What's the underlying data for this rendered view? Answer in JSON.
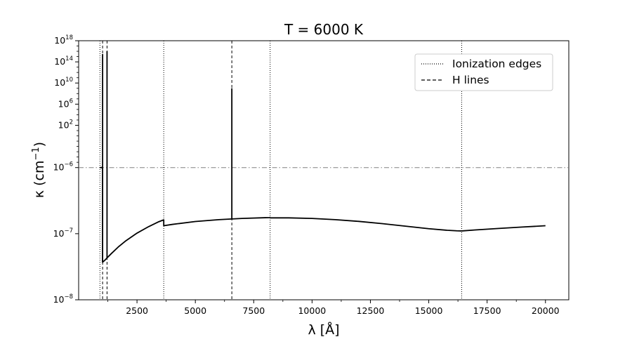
{
  "chart_data": {
    "type": "line",
    "title": "T = 6000 K",
    "xlabel": "λ [Å]",
    "ylabel_main": "κ (cm",
    "ylabel_sup": "−1",
    "ylabel_end": ")",
    "xlim": [
      0,
      21000
    ],
    "x_ticks": [
      2500,
      5000,
      7500,
      10000,
      12500,
      15000,
      17500,
      20000
    ],
    "x_tick_labels": [
      "2500",
      "5000",
      "7500",
      "10000",
      "12500",
      "15000",
      "17500",
      "20000"
    ],
    "y_tick_labels": [
      {
        "base": "10",
        "exp": "18"
      },
      {
        "base": "10",
        "exp": "14"
      },
      {
        "base": "10",
        "exp": "10"
      },
      {
        "base": "10",
        "exp": "6"
      },
      {
        "base": "10",
        "exp": "2"
      },
      {
        "base": "10",
        "exp": "−6"
      },
      {
        "base": "10",
        "exp": "−7"
      },
      {
        "base": "10",
        "exp": "−8"
      }
    ],
    "y_ticks": [
      1e+18,
      100000000000000.0,
      10000000000.0,
      1000000.0,
      100,
      1e-06,
      1e-07,
      1e-08
    ],
    "y_scale": "symlog-like (upper region compressed log, lower region expanded log)",
    "y_scale_map": {
      "upper": {
        "values": [
          1e-06,
          1e+18
        ],
        "axis_fraction": [
          0.5103,
          1.0
        ]
      },
      "lower": {
        "values": [
          1e-08,
          1e-06
        ],
        "axis_fraction": [
          0.0,
          0.5103
        ]
      }
    },
    "series": [
      {
        "name": "",
        "style": "solid",
        "color": "#000000",
        "points": [
          [
            912,
            1e-06
          ],
          [
            1000,
            1.05e-06
          ],
          [
            1026,
            1.1e-06
          ],
          [
            1026,
            3.7e-08
          ],
          [
            1100,
            3.9e-08
          ],
          [
            1216,
            4.3e-08
          ],
          [
            1400,
            5e-08
          ],
          [
            1700,
            6.3e-08
          ],
          [
            2000,
            7.7e-08
          ],
          [
            2500,
            1.02e-07
          ],
          [
            3000,
            1.28e-07
          ],
          [
            3400,
            1.5e-07
          ],
          [
            3646,
            1.62e-07
          ],
          [
            3646,
            1.32e-07
          ],
          [
            4000,
            1.38e-07
          ],
          [
            5000,
            1.53e-07
          ],
          [
            6000,
            1.63e-07
          ],
          [
            6563,
            1.67e-07
          ],
          [
            7000,
            1.7e-07
          ],
          [
            8000,
            1.745e-07
          ],
          [
            8204,
            1.75e-07
          ],
          [
            8204,
            1.735e-07
          ],
          [
            9000,
            1.735e-07
          ],
          [
            10000,
            1.7e-07
          ],
          [
            11000,
            1.63e-07
          ],
          [
            12000,
            1.535e-07
          ],
          [
            13000,
            1.42e-07
          ],
          [
            14000,
            1.3e-07
          ],
          [
            15000,
            1.19e-07
          ],
          [
            15800,
            1.125e-07
          ],
          [
            16200,
            1.105e-07
          ],
          [
            16412,
            1.1e-07
          ],
          [
            17000,
            1.14e-07
          ],
          [
            18000,
            1.2e-07
          ],
          [
            19000,
            1.26e-07
          ],
          [
            20000,
            1.32e-07
          ]
        ],
        "spikes": [
          {
            "x": 1026,
            "base": 3.7e-08,
            "peak": 3000000000000000.0
          },
          {
            "x": 1216,
            "base": 4.3e-08,
            "peak": 1e+16
          },
          {
            "x": 6563,
            "base": 1.67e-07,
            "peak": 1000000000.0
          }
        ]
      }
    ],
    "ionization_edges": [
      912,
      3646,
      8204,
      16412
    ],
    "h_lines": [
      1026,
      1216,
      6563
    ],
    "reference_line": {
      "y": 1e-06,
      "style": "dashdot",
      "color": "#808080"
    },
    "legend": {
      "placement": "upper-right",
      "entries": [
        {
          "label": "Ionization edges",
          "style": "dotted"
        },
        {
          "label": "H lines",
          "style": "dashed"
        }
      ]
    },
    "grid": false
  }
}
